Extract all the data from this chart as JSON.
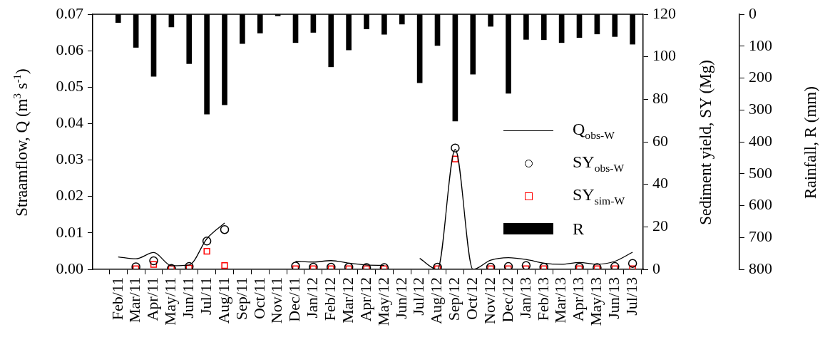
{
  "chart_data": {
    "type": "line",
    "categories": [
      "Feb/11",
      "Mar/11",
      "Apr/11",
      "May/11",
      "Jun/11",
      "Jul/11",
      "Aug/11",
      "Sep/11",
      "Oct/11",
      "Nov/11",
      "Dec/11",
      "Jan/12",
      "Feb/12",
      "Mar/12",
      "Apr/12",
      "May/12",
      "Jun/12",
      "Jul/12",
      "Aug/12",
      "Sep/12",
      "Oct/12",
      "Nov/12",
      "Dec/12",
      "Jan/13",
      "Feb/13",
      "Mar/13",
      "Apr/13",
      "May/13",
      "Jun/13",
      "Jul/13"
    ],
    "ylabel": "Straamflow, Q (m$^{3}$ s$^{-1}$)",
    "y2label": "Sediment yield, SY (Mg)",
    "y3label": "Rainfall, R (mm)",
    "ylim": [
      0,
      0.07
    ],
    "yticks": [
      {
        "value": 0,
        "label": "0.00"
      },
      {
        "value": 0.01,
        "label": "0.01"
      },
      {
        "value": 0.02,
        "label": "0.02"
      },
      {
        "value": 0.03,
        "label": "0.03"
      },
      {
        "value": 0.04,
        "label": "0.04"
      },
      {
        "value": 0.05,
        "label": "0.05"
      },
      {
        "value": 0.06,
        "label": "0.06"
      },
      {
        "value": 0.07,
        "label": "0.07"
      }
    ],
    "y2lim": [
      0,
      120
    ],
    "y2ticks": [
      0,
      20,
      40,
      60,
      80,
      100,
      120
    ],
    "y3lim": [
      800,
      0
    ],
    "y3ticks": [
      0,
      100,
      200,
      300,
      400,
      500,
      600,
      700,
      800
    ],
    "grid": false,
    "legend": "right",
    "series": [
      {
        "name": "Q$_{obs-W}$",
        "marker": "none",
        "color": "#000000",
        "values": [
          0.0034,
          0.0029,
          0.0046,
          0.001,
          0.0012,
          0.0084,
          0.0127,
          null,
          null,
          null,
          0.0022,
          0.002,
          0.0024,
          0.0017,
          0.0012,
          0.0011,
          null,
          0.003,
          0.0,
          0.0329,
          0.0,
          0.0025,
          0.0032,
          0.0027,
          0.0017,
          0.0014,
          0.0019,
          0.0014,
          0.0022,
          0.0047
        ]
      },
      {
        "name": "SY$_{obs-W}$",
        "type": "scatter",
        "axis": "y2",
        "marker": "circle",
        "color": "#000000",
        "values": [
          null,
          1.2,
          4.0,
          0.4,
          1.3,
          13.3,
          18.7,
          null,
          null,
          null,
          1.5,
          1.0,
          1.0,
          1.0,
          0.8,
          0.8,
          null,
          null,
          1.0,
          57.1,
          null,
          1.0,
          1.3,
          1.8,
          1.0,
          null,
          1.0,
          0.8,
          1.3,
          2.8
        ]
      },
      {
        "name": "SY$_{sim-W}$",
        "type": "scatter",
        "axis": "y2",
        "marker": "square",
        "color": "#ff0000",
        "values": [
          null,
          0.3,
          2.3,
          0.3,
          0.5,
          8.5,
          1.8,
          null,
          null,
          null,
          0.3,
          0.3,
          0.3,
          0.3,
          0.3,
          0.3,
          null,
          null,
          0.3,
          51.9,
          null,
          0.3,
          0.3,
          0.3,
          0.3,
          null,
          0.3,
          0.3,
          0.3,
          0.3
        ]
      },
      {
        "name": "R",
        "type": "bar",
        "axis": "y3",
        "color": "#000000",
        "values": [
          26,
          104,
          195,
          40,
          155,
          313,
          284,
          92,
          59,
          5,
          89,
          57,
          165,
          112,
          46,
          63,
          31,
          215,
          98,
          335,
          188,
          38,
          248,
          79,
          80,
          89,
          73,
          62,
          70,
          94
        ]
      }
    ]
  }
}
